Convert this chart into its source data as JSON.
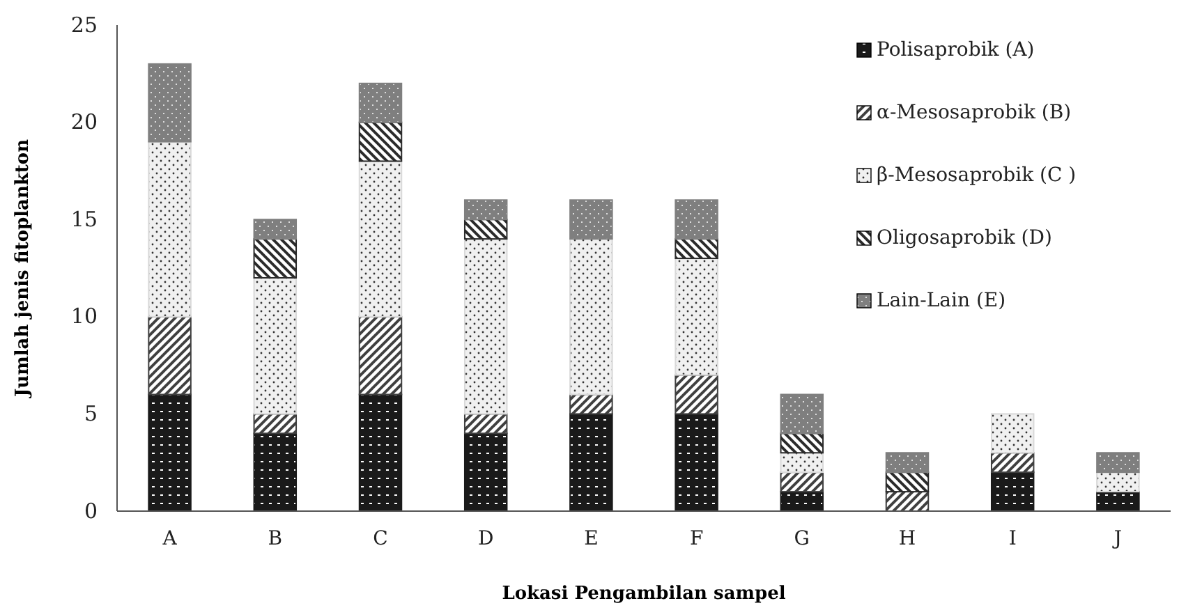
{
  "chart_data": {
    "type": "bar",
    "stacked": true,
    "xlabel": "Lokasi Pengambilan sampel",
    "ylabel": "Jumlah jenis fitoplankton",
    "categories": [
      "A",
      "B",
      "C",
      "D",
      "E",
      "F",
      "G",
      "H",
      "I",
      "J"
    ],
    "ylim": [
      0,
      25
    ],
    "yticks": [
      0,
      5,
      10,
      15,
      20,
      25
    ],
    "grid": false,
    "legend": "top right",
    "series": [
      {
        "name": "Polisaprobik (A)",
        "color": "#1a1a1a",
        "values": [
          6,
          4,
          6,
          4,
          5,
          5,
          1,
          0,
          2,
          1
        ]
      },
      {
        "name": "α-Mesosaprobik (B)",
        "color": "#404040",
        "values": [
          4,
          1,
          4,
          1,
          1,
          2,
          1,
          1,
          1,
          0
        ]
      },
      {
        "name": "β-Mesosaprobik (C )",
        "color": "#d9d9d9",
        "values": [
          9,
          7,
          8,
          9,
          8,
          6,
          1,
          0,
          2,
          1
        ]
      },
      {
        "name": "Oligosaprobik (D)",
        "color": "#2b2b2b",
        "values": [
          0,
          2,
          2,
          1,
          0,
          1,
          1,
          1,
          0,
          0
        ]
      },
      {
        "name": "Lain-Lain (E)",
        "color": "#7f7f7f",
        "values": [
          4,
          1,
          2,
          1,
          2,
          2,
          2,
          1,
          0,
          1
        ]
      }
    ]
  }
}
